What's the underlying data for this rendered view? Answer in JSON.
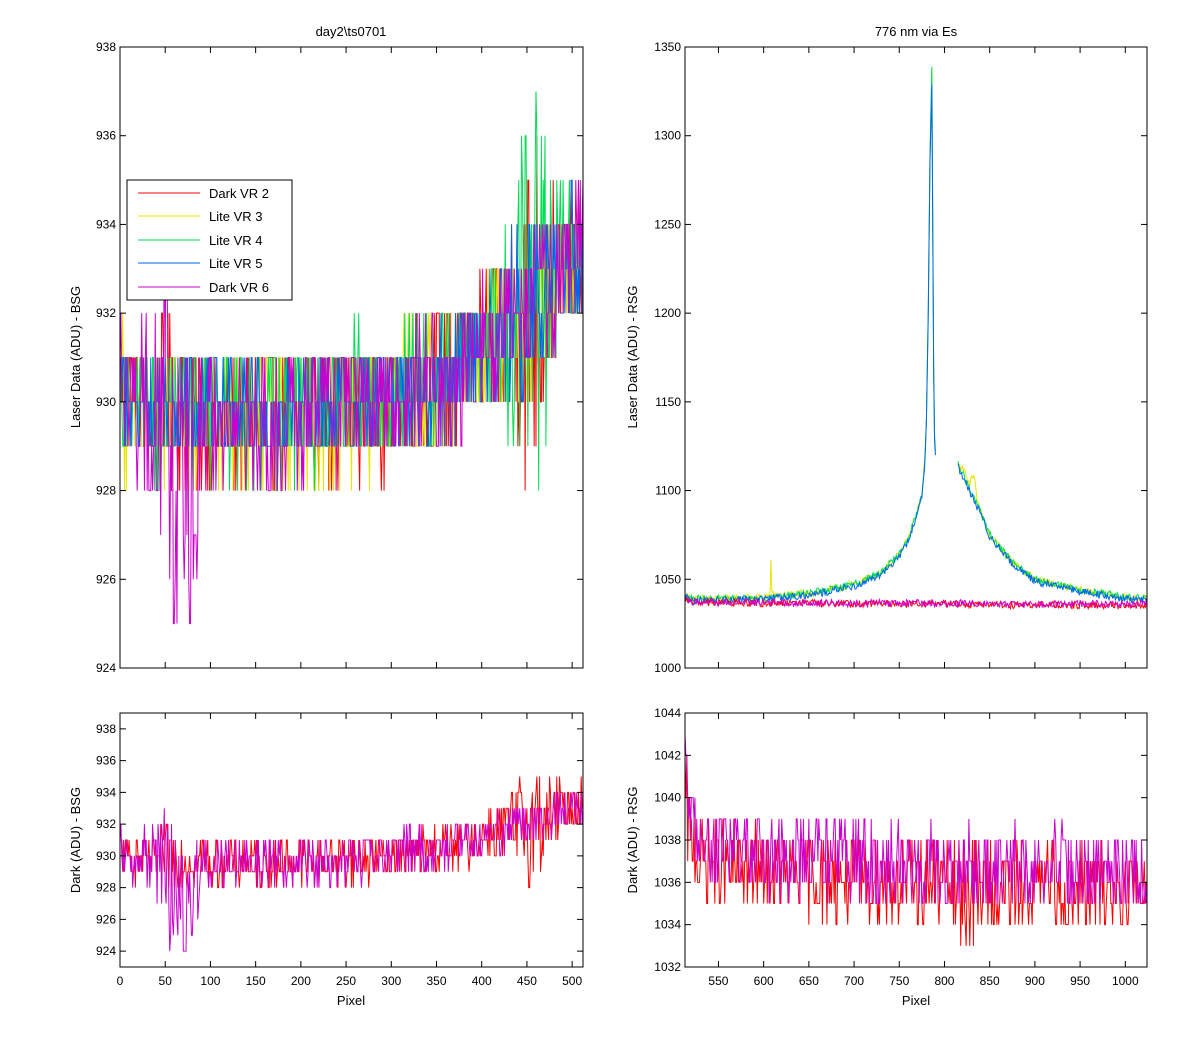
{
  "figure": {
    "background": "#ffffff",
    "series_colors": {
      "Dark VR 2": "#ff0000",
      "Lite VR 3": "#e6e600",
      "Lite VR 4": "#00dd55",
      "Lite VR 5": "#0066ee",
      "Dark VR 6": "#cc00cc"
    }
  },
  "chart_data": [
    {
      "id": "top_left",
      "type": "line",
      "title": "day2\\ts0701",
      "xlabel": "",
      "ylabel": "Laser Data (ADU) - BSG",
      "xlim": [
        0,
        512
      ],
      "ylim": [
        924,
        938
      ],
      "xticks": [
        0,
        50,
        100,
        150,
        200,
        250,
        300,
        350,
        400,
        450,
        500
      ],
      "yticks": [
        924,
        926,
        928,
        930,
        932,
        934,
        936,
        938
      ],
      "show_xtick_labels": false,
      "legend": {
        "placement": "upper-left",
        "entries": [
          "Dark VR 2",
          "Lite VR 3",
          "Lite VR 4",
          "Lite VR 5",
          "Dark VR 6"
        ]
      },
      "series": [
        {
          "name": "Dark VR 2",
          "color": "#ff0000",
          "x": [
            0,
            10,
            30,
            60,
            100,
            150,
            200,
            250,
            300,
            350,
            380,
            400,
            420,
            440,
            450,
            460,
            470,
            480,
            490,
            500,
            512
          ],
          "y": [
            930.5,
            930,
            929.8,
            930,
            929.6,
            929.6,
            929.7,
            929.8,
            930,
            930.4,
            930.8,
            931.2,
            931.6,
            931.8,
            932,
            932.2,
            932.4,
            932.8,
            933,
            933.2,
            933.2
          ],
          "noise": [
            1.5,
            1.5,
            1.5,
            2,
            1.5,
            1.5,
            1.5,
            1.5,
            1.5,
            1.5,
            1.5,
            1.5,
            2,
            3,
            4,
            4,
            3,
            2,
            1.5,
            1.5,
            1.5
          ]
        },
        {
          "name": "Lite VR 3",
          "color": "#e6e600",
          "x": [
            0,
            10,
            30,
            60,
            100,
            150,
            200,
            250,
            300,
            350,
            380,
            400,
            420,
            440,
            450,
            460,
            470,
            480,
            490,
            500,
            512
          ],
          "y": [
            930.5,
            929.6,
            929.8,
            929.7,
            929.6,
            929.6,
            929.6,
            929.8,
            930,
            930.4,
            930.8,
            931.2,
            931.6,
            931.8,
            932,
            932.2,
            932.4,
            932.8,
            933,
            933.2,
            933.2
          ],
          "noise": [
            2.5,
            2,
            1.5,
            1.5,
            1.5,
            1.5,
            1.5,
            1.5,
            1.5,
            1.5,
            1.5,
            1.5,
            2,
            2,
            2,
            2,
            2,
            1.5,
            1.5,
            1.5,
            1.5
          ]
        },
        {
          "name": "Lite VR 4",
          "color": "#00dd55",
          "x": [
            0,
            10,
            30,
            60,
            100,
            150,
            200,
            250,
            300,
            350,
            380,
            400,
            420,
            440,
            450,
            460,
            470,
            480,
            490,
            500,
            512
          ],
          "y": [
            930,
            929.8,
            929.9,
            929.7,
            929.8,
            929.8,
            929.9,
            930,
            930.2,
            930.5,
            930.8,
            931.2,
            931.6,
            931.9,
            932.1,
            932.4,
            932.6,
            932.9,
            933.1,
            933.3,
            933.3
          ],
          "noise": [
            1.5,
            1.5,
            1.5,
            1.5,
            1.5,
            1.5,
            1.5,
            1.5,
            1.5,
            1.5,
            1.5,
            1.5,
            2,
            4,
            4.5,
            4.5,
            4,
            2.5,
            2,
            2,
            1.5
          ]
        },
        {
          "name": "Lite VR 5",
          "color": "#0066ee",
          "x": [
            0,
            10,
            30,
            60,
            100,
            150,
            200,
            250,
            300,
            350,
            380,
            400,
            420,
            440,
            450,
            460,
            470,
            480,
            490,
            500,
            512
          ],
          "y": [
            930,
            929.8,
            929.8,
            929.7,
            929.7,
            929.7,
            929.8,
            929.9,
            930.1,
            930.4,
            930.8,
            931.2,
            931.6,
            931.9,
            932.1,
            932.4,
            932.6,
            932.9,
            933.1,
            933.3,
            933.3
          ],
          "noise": [
            1.2,
            1.2,
            1.2,
            1.2,
            1.2,
            1.2,
            1.2,
            1.2,
            1.2,
            1.2,
            1.2,
            1.2,
            1.5,
            2,
            2,
            2,
            2,
            1.5,
            1.5,
            1.5,
            1.5
          ]
        },
        {
          "name": "Dark VR 6",
          "color": "#cc00cc",
          "x": [
            0,
            10,
            30,
            45,
            50,
            55,
            60,
            70,
            80,
            90,
            100,
            150,
            200,
            250,
            300,
            350,
            380,
            400,
            420,
            440,
            460,
            480,
            500,
            512
          ],
          "y": [
            930.3,
            930,
            929.8,
            929.5,
            931,
            928,
            927.5,
            927.5,
            928,
            929,
            929.6,
            929.6,
            929.6,
            929.8,
            930,
            930.4,
            930.8,
            931.2,
            931.6,
            931.9,
            932.3,
            932.7,
            933.1,
            933.2
          ],
          "noise": [
            1.5,
            1.5,
            2,
            3,
            6,
            5,
            4,
            4,
            3,
            2,
            1.5,
            1.5,
            1.5,
            1.5,
            1.5,
            1.5,
            1.5,
            1.5,
            1.5,
            1.5,
            1.5,
            1.5,
            1.5,
            1.5
          ]
        }
      ]
    },
    {
      "id": "top_right",
      "type": "line",
      "title": "776 nm via Es",
      "xlabel": "",
      "ylabel": "Laser Data (ADU) - RSG",
      "xlim": [
        513,
        1024
      ],
      "ylim": [
        1000,
        1350
      ],
      "xticks": [
        550,
        600,
        650,
        700,
        750,
        800,
        850,
        900,
        950,
        1000
      ],
      "yticks": [
        1000,
        1050,
        1100,
        1150,
        1200,
        1250,
        1300,
        1350
      ],
      "show_xtick_labels": false,
      "series": [
        {
          "name": "Lite VR 3",
          "color": "#e6e600",
          "x": [
            513,
            520,
            550,
            600,
            607,
            608,
            609,
            610,
            612,
            650,
            700,
            730,
            750,
            760,
            770,
            775,
            778,
            780,
            782,
            784,
            786,
            788,
            789,
            790,
            null,
            815,
            820,
            825,
            828,
            830,
            832,
            834,
            836,
            840,
            850,
            875,
            900,
            950,
            1000,
            1024
          ],
          "y": [
            1041,
            1039,
            1039,
            1040,
            1041,
            1060,
            1045,
            1041,
            1041,
            1042,
            1047,
            1054,
            1064,
            1073,
            1088,
            1098,
            1115,
            1140,
            1200,
            1290,
            1335,
            1170,
            1130,
            1122,
            null,
            1115,
            1112,
            1108,
            1103,
            1108,
            1110,
            1106,
            1095,
            1088,
            1075,
            1060,
            1050,
            1044,
            1040,
            1039
          ],
          "noise": 2
        },
        {
          "name": "Lite VR 4",
          "color": "#00dd55",
          "x": [
            513,
            520,
            550,
            600,
            650,
            700,
            730,
            750,
            760,
            770,
            775,
            778,
            780,
            782,
            784,
            786,
            788,
            789,
            790,
            null,
            815,
            820,
            825,
            830,
            835,
            840,
            850,
            875,
            900,
            950,
            1000,
            1024
          ],
          "y": [
            1041,
            1039,
            1039,
            1039,
            1042,
            1047,
            1054,
            1064,
            1073,
            1088,
            1098,
            1115,
            1140,
            1200,
            1290,
            1340,
            1170,
            1130,
            1122,
            null,
            1115,
            1110,
            1104,
            1098,
            1093,
            1088,
            1075,
            1060,
            1050,
            1044,
            1040,
            1039
          ],
          "noise": 2
        },
        {
          "name": "Lite VR 5",
          "color": "#0066ee",
          "x": [
            513,
            520,
            550,
            600,
            650,
            700,
            730,
            750,
            760,
            770,
            775,
            778,
            780,
            782,
            784,
            786,
            788,
            789,
            790,
            null,
            815,
            820,
            825,
            830,
            835,
            840,
            850,
            875,
            900,
            950,
            1000,
            1024
          ],
          "y": [
            1040,
            1038,
            1038,
            1039,
            1041,
            1046,
            1053,
            1063,
            1072,
            1087,
            1097,
            1113,
            1138,
            1198,
            1288,
            1328,
            1168,
            1128,
            1121,
            null,
            1113,
            1108,
            1103,
            1097,
            1092,
            1087,
            1074,
            1059,
            1049,
            1043,
            1039,
            1038
          ],
          "noise": 2
        },
        {
          "name": "Dark VR 2",
          "color": "#ff0000",
          "x": [
            513,
            520,
            550,
            600,
            650,
            700,
            750,
            800,
            850,
            900,
            950,
            1000,
            1024
          ],
          "y": [
            1038,
            1037,
            1037,
            1036.5,
            1036.5,
            1036.5,
            1036,
            1036,
            1035.5,
            1035.5,
            1035.5,
            1035.5,
            1035.5
          ],
          "noise": 2
        },
        {
          "name": "Dark VR 6",
          "color": "#cc00cc",
          "x": [
            513,
            520,
            550,
            600,
            650,
            700,
            750,
            800,
            850,
            900,
            950,
            1000,
            1024
          ],
          "y": [
            1038.5,
            1037.5,
            1037,
            1037,
            1036.5,
            1036.5,
            1036.5,
            1036.5,
            1036,
            1036,
            1036,
            1036,
            1036
          ],
          "noise": 2
        }
      ]
    },
    {
      "id": "bottom_left",
      "type": "line",
      "title": "",
      "xlabel": "Pixel",
      "ylabel": "Dark (ADU) - BSG",
      "xlim": [
        0,
        512
      ],
      "ylim": [
        923,
        939
      ],
      "xticks": [
        0,
        50,
        100,
        150,
        200,
        250,
        300,
        350,
        400,
        450,
        500
      ],
      "yticks": [
        924,
        926,
        928,
        930,
        932,
        934,
        936,
        938
      ],
      "show_xtick_labels": true,
      "series": [
        {
          "name": "Dark VR 2",
          "color": "#ff0000",
          "x": [
            0,
            10,
            30,
            60,
            100,
            150,
            200,
            250,
            300,
            350,
            380,
            400,
            420,
            440,
            450,
            460,
            470,
            480,
            490,
            500,
            512
          ],
          "y": [
            930.5,
            930,
            929.8,
            930,
            929.6,
            929.6,
            929.7,
            929.8,
            930,
            930.4,
            930.8,
            931.2,
            931.6,
            931.8,
            932,
            932.2,
            932.4,
            932.8,
            933,
            933.2,
            933.2
          ],
          "noise": [
            1.5,
            1.5,
            1.5,
            2,
            1.5,
            1.5,
            1.5,
            1.5,
            1.5,
            1.5,
            1.5,
            1.5,
            2,
            3,
            4,
            4,
            3,
            2,
            1.5,
            1.5,
            1.5
          ]
        },
        {
          "name": "Dark VR 6",
          "color": "#cc00cc",
          "x": [
            0,
            10,
            30,
            45,
            50,
            55,
            60,
            70,
            80,
            90,
            100,
            150,
            200,
            250,
            300,
            350,
            380,
            400,
            420,
            440,
            460,
            480,
            500,
            512
          ],
          "y": [
            930.3,
            930,
            929.8,
            929.5,
            931,
            928,
            927.5,
            927.5,
            928,
            929,
            929.6,
            929.6,
            929.6,
            929.8,
            930,
            930.4,
            930.8,
            931.2,
            931.6,
            931.9,
            932.3,
            932.7,
            933.1,
            933.2
          ],
          "noise": [
            1.5,
            1.5,
            2,
            3,
            6,
            5,
            4,
            4,
            3,
            2,
            1.5,
            1.5,
            1.5,
            1.5,
            1.5,
            1.5,
            1.5,
            1.5,
            1.5,
            1.5,
            1.5,
            1.5,
            1.5,
            1.5
          ]
        }
      ]
    },
    {
      "id": "bottom_right",
      "type": "line",
      "title": "",
      "xlabel": "Pixel",
      "ylabel": "Dark (ADU) - RSG",
      "xlim": [
        513,
        1024
      ],
      "ylim": [
        1032,
        1044
      ],
      "xticks": [
        550,
        600,
        650,
        700,
        750,
        800,
        850,
        900,
        950,
        1000
      ],
      "yticks": [
        1032,
        1034,
        1036,
        1038,
        1040,
        1042,
        1044
      ],
      "show_xtick_labels": true,
      "series": [
        {
          "name": "Dark VR 2",
          "color": "#ff0000",
          "x": [
            513,
            515,
            520,
            530,
            550,
            600,
            650,
            700,
            750,
            800,
            820,
            850,
            900,
            950,
            1000,
            1024
          ],
          "y": [
            1040,
            1039,
            1038,
            1037,
            1036.8,
            1036.5,
            1036.3,
            1036.2,
            1036,
            1036,
            1035.6,
            1035.8,
            1035.8,
            1035.7,
            1035.7,
            1035.6
          ],
          "noise": [
            3,
            3,
            2,
            2,
            2,
            2,
            2,
            2,
            2,
            2,
            3,
            2,
            2,
            2,
            2,
            2
          ]
        },
        {
          "name": "Dark VR 6",
          "color": "#cc00cc",
          "x": [
            513,
            515,
            520,
            530,
            550,
            600,
            650,
            700,
            750,
            800,
            850,
            900,
            950,
            1000,
            1024
          ],
          "y": [
            1041,
            1040,
            1038.8,
            1038,
            1037.6,
            1037.2,
            1037,
            1037,
            1036.8,
            1036.7,
            1036.6,
            1036.6,
            1036.5,
            1036.5,
            1036.5
          ],
          "noise": [
            3,
            3,
            2,
            2,
            2,
            2,
            2,
            2,
            2,
            2,
            2,
            2,
            2,
            2,
            2
          ]
        }
      ]
    }
  ]
}
